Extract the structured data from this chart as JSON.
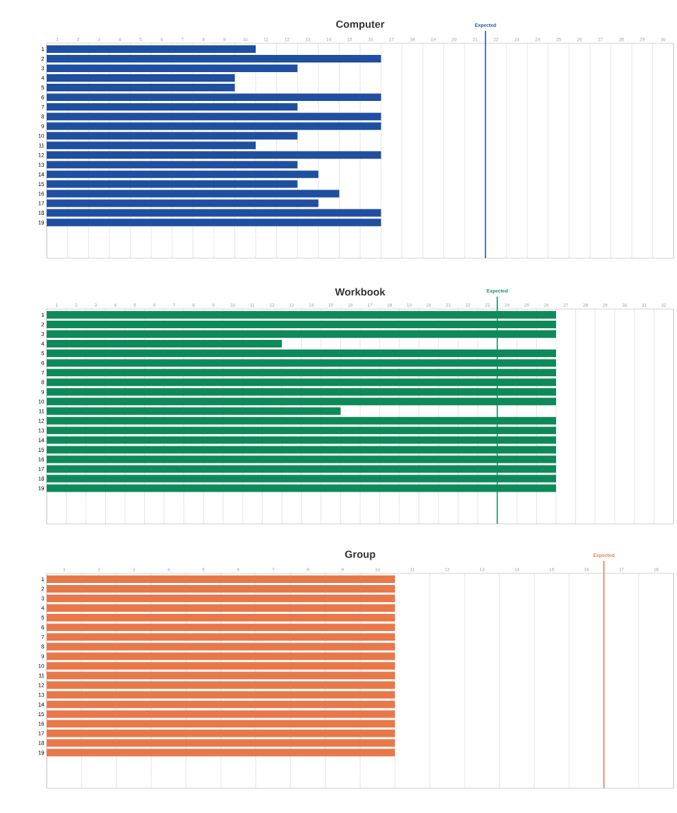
{
  "chart_data": [
    {
      "type": "bar",
      "orientation": "horizontal",
      "title": "Computer",
      "categories": [
        "1",
        "2",
        "3",
        "4",
        "5",
        "6",
        "7",
        "8",
        "9",
        "10",
        "11",
        "12",
        "13",
        "14",
        "15",
        "16",
        "17",
        "18",
        "19"
      ],
      "values": [
        10,
        16,
        12,
        9,
        9,
        16,
        12,
        16,
        16,
        12,
        10,
        16,
        12,
        13,
        12,
        14,
        13,
        16,
        16
      ],
      "color": "#1f4fa0",
      "xlim": [
        0,
        30
      ],
      "xticks": [
        {
          "value": 0,
          "label": null
        },
        {
          "value": 1,
          "label": null
        },
        {
          "value": 2,
          "label": null
        },
        {
          "value": 3,
          "label": null
        },
        {
          "value": 4,
          "label": null
        },
        {
          "value": 5,
          "label": null
        },
        {
          "value": 6,
          "label": null
        },
        {
          "value": 7,
          "label": null
        },
        {
          "value": 8,
          "label": null
        },
        {
          "value": 9,
          "label": null
        },
        {
          "value": 10,
          "label": null
        },
        {
          "value": 11,
          "label": null
        },
        {
          "value": 12,
          "label": null
        },
        {
          "value": 13,
          "label": null
        },
        {
          "value": 14,
          "label": null
        },
        {
          "value": 15,
          "label": null
        },
        {
          "value": 16,
          "label": null
        },
        {
          "value": 17,
          "label": null
        },
        {
          "value": 18,
          "label": null
        },
        {
          "value": 19,
          "label": null
        },
        {
          "value": 20,
          "label": null
        },
        {
          "value": 21,
          "label": null
        },
        {
          "value": 22,
          "label": null
        },
        {
          "value": 23,
          "label": null
        },
        {
          "value": 24,
          "label": null
        },
        {
          "value": 25,
          "label": null
        },
        {
          "value": 26,
          "label": null
        },
        {
          "value": 27,
          "label": null
        },
        {
          "value": 28,
          "label": null
        },
        {
          "value": 29,
          "label": null
        },
        {
          "value": 30,
          "label": null
        },
        {
          "value": 0.5,
          "label": "1"
        },
        {
          "value": 1.5,
          "label": "2"
        },
        {
          "value": 2.5,
          "label": "3"
        },
        {
          "value": 3.5,
          "label": "4"
        },
        {
          "value": 4.5,
          "label": "5"
        },
        {
          "value": 5.5,
          "label": "6"
        },
        {
          "value": 6.5,
          "label": "7"
        },
        {
          "value": 7.5,
          "label": "8"
        },
        {
          "value": 8.5,
          "label": "9"
        },
        {
          "value": 9.5,
          "label": "10"
        },
        {
          "value": 10.5,
          "label": "11"
        },
        {
          "value": 11.5,
          "label": "12"
        },
        {
          "value": 12.5,
          "label": "13"
        },
        {
          "value": 13.5,
          "label": "14"
        },
        {
          "value": 14.5,
          "label": "15"
        },
        {
          "value": 15.5,
          "label": "16"
        },
        {
          "value": 16.5,
          "label": "17"
        },
        {
          "value": 17.5,
          "label": "18"
        },
        {
          "value": 18.5,
          "label": "19"
        },
        {
          "value": 19.5,
          "label": "20"
        },
        {
          "value": 20.5,
          "label": "21"
        },
        {
          "value": 21.5,
          "label": "22"
        },
        {
          "value": 22.5,
          "label": "23"
        },
        {
          "value": 23.5,
          "label": "24"
        },
        {
          "value": 24.5,
          "label": "25"
        },
        {
          "value": 25.5,
          "label": "26"
        },
        {
          "value": 26.5,
          "label": "27"
        },
        {
          "value": 27.5,
          "label": "28"
        },
        {
          "value": 28.5,
          "label": "29"
        },
        {
          "value": 29.5,
          "label": "30"
        }
      ],
      "grid": "x",
      "ref_lines": [
        {
          "axis": "x",
          "value": 21,
          "label": "Expected",
          "color": "#1f4fa0"
        }
      ]
    },
    {
      "type": "bar",
      "orientation": "horizontal",
      "title": "Workbook",
      "categories": [
        "1",
        "2",
        "3",
        "4",
        "5",
        "6",
        "7",
        "8",
        "9",
        "10",
        "11",
        "12",
        "13",
        "14",
        "15",
        "16",
        "17",
        "18",
        "19"
      ],
      "values": [
        26,
        26,
        26,
        12,
        26,
        26,
        26,
        26,
        26,
        26,
        15,
        26,
        26,
        26,
        26,
        26,
        26,
        26,
        26
      ],
      "color": "#0e8a5a",
      "xlim": [
        0,
        32
      ],
      "xticks": [
        {
          "value": 0,
          "label": null
        },
        {
          "value": 1,
          "label": null
        },
        {
          "value": 2,
          "label": null
        },
        {
          "value": 3,
          "label": null
        },
        {
          "value": 4,
          "label": null
        },
        {
          "value": 5,
          "label": null
        },
        {
          "value": 6,
          "label": null
        },
        {
          "value": 7,
          "label": null
        },
        {
          "value": 8,
          "label": null
        },
        {
          "value": 9,
          "label": null
        },
        {
          "value": 10,
          "label": null
        },
        {
          "value": 11,
          "label": null
        },
        {
          "value": 12,
          "label": null
        },
        {
          "value": 13,
          "label": null
        },
        {
          "value": 14,
          "label": null
        },
        {
          "value": 15,
          "label": null
        },
        {
          "value": 16,
          "label": null
        },
        {
          "value": 17,
          "label": null
        },
        {
          "value": 18,
          "label": null
        },
        {
          "value": 19,
          "label": null
        },
        {
          "value": 20,
          "label": null
        },
        {
          "value": 21,
          "label": null
        },
        {
          "value": 22,
          "label": null
        },
        {
          "value": 23,
          "label": null
        },
        {
          "value": 24,
          "label": null
        },
        {
          "value": 25,
          "label": null
        },
        {
          "value": 26,
          "label": null
        },
        {
          "value": 27,
          "label": null
        },
        {
          "value": 28,
          "label": null
        },
        {
          "value": 29,
          "label": null
        },
        {
          "value": 30,
          "label": null
        },
        {
          "value": 31,
          "label": null
        },
        {
          "value": 32,
          "label": null
        },
        {
          "value": 0.5,
          "label": "1"
        },
        {
          "value": 1.5,
          "label": "2"
        },
        {
          "value": 2.5,
          "label": "3"
        },
        {
          "value": 3.5,
          "label": "4"
        },
        {
          "value": 4.5,
          "label": "5"
        },
        {
          "value": 5.5,
          "label": "6"
        },
        {
          "value": 6.5,
          "label": "7"
        },
        {
          "value": 7.5,
          "label": "8"
        },
        {
          "value": 8.5,
          "label": "9"
        },
        {
          "value": 9.5,
          "label": "10"
        },
        {
          "value": 10.5,
          "label": "11"
        },
        {
          "value": 11.5,
          "label": "12"
        },
        {
          "value": 12.5,
          "label": "13"
        },
        {
          "value": 13.5,
          "label": "14"
        },
        {
          "value": 14.5,
          "label": "15"
        },
        {
          "value": 15.5,
          "label": "16"
        },
        {
          "value": 16.5,
          "label": "17"
        },
        {
          "value": 17.5,
          "label": "18"
        },
        {
          "value": 18.5,
          "label": "19"
        },
        {
          "value": 19.5,
          "label": "20"
        },
        {
          "value": 20.5,
          "label": "21"
        },
        {
          "value": 21.5,
          "label": "22"
        },
        {
          "value": 22.5,
          "label": "23"
        },
        {
          "value": 23.5,
          "label": "24"
        },
        {
          "value": 24.5,
          "label": "25"
        },
        {
          "value": 25.5,
          "label": "26"
        },
        {
          "value": 26.5,
          "label": "27"
        },
        {
          "value": 27.5,
          "label": "28"
        },
        {
          "value": 28.5,
          "label": "29"
        },
        {
          "value": 29.5,
          "label": "30"
        },
        {
          "value": 30.5,
          "label": "31"
        },
        {
          "value": 31.5,
          "label": "32"
        }
      ],
      "grid": "x",
      "ref_lines": [
        {
          "axis": "x",
          "value": 23,
          "label": "Expected",
          "color": "#0e8a5a"
        }
      ]
    },
    {
      "type": "bar",
      "orientation": "horizontal",
      "title": "Group",
      "categories": [
        "1",
        "2",
        "3",
        "4",
        "5",
        "6",
        "7",
        "8",
        "9",
        "10",
        "11",
        "12",
        "13",
        "14",
        "15",
        "16",
        "17",
        "18",
        "19"
      ],
      "values": [
        10,
        10,
        10,
        10,
        10,
        10,
        10,
        10,
        10,
        10,
        10,
        10,
        10,
        10,
        10,
        10,
        10,
        10,
        10
      ],
      "color": "#e8784a",
      "xlim": [
        0,
        18
      ],
      "xticks": [
        {
          "value": 0,
          "label": null
        },
        {
          "value": 1,
          "label": null
        },
        {
          "value": 2,
          "label": null
        },
        {
          "value": 3,
          "label": null
        },
        {
          "value": 4,
          "label": null
        },
        {
          "value": 5,
          "label": null
        },
        {
          "value": 6,
          "label": null
        },
        {
          "value": 7,
          "label": null
        },
        {
          "value": 8,
          "label": null
        },
        {
          "value": 9,
          "label": null
        },
        {
          "value": 10,
          "label": null
        },
        {
          "value": 11,
          "label": null
        },
        {
          "value": 12,
          "label": null
        },
        {
          "value": 13,
          "label": null
        },
        {
          "value": 14,
          "label": null
        },
        {
          "value": 15,
          "label": null
        },
        {
          "value": 16,
          "label": null
        },
        {
          "value": 17,
          "label": null
        },
        {
          "value": 18,
          "label": null
        },
        {
          "value": 0.5,
          "label": "1"
        },
        {
          "value": 1.5,
          "label": "2"
        },
        {
          "value": 2.5,
          "label": "3"
        },
        {
          "value": 3.5,
          "label": "4"
        },
        {
          "value": 4.5,
          "label": "5"
        },
        {
          "value": 5.5,
          "label": "6"
        },
        {
          "value": 6.5,
          "label": "7"
        },
        {
          "value": 7.5,
          "label": "8"
        },
        {
          "value": 8.5,
          "label": "9"
        },
        {
          "value": 9.5,
          "label": "10"
        },
        {
          "value": 10.5,
          "label": "11"
        },
        {
          "value": 11.5,
          "label": "12"
        },
        {
          "value": 12.5,
          "label": "13"
        },
        {
          "value": 13.5,
          "label": "14"
        },
        {
          "value": 14.5,
          "label": "15"
        },
        {
          "value": 15.5,
          "label": "16"
        },
        {
          "value": 16.5,
          "label": "17"
        },
        {
          "value": 17.5,
          "label": "18"
        }
      ],
      "grid": "x",
      "ref_lines": [
        {
          "axis": "x",
          "value": 16,
          "label": "Expected",
          "color": "#e8784a"
        }
      ]
    }
  ]
}
